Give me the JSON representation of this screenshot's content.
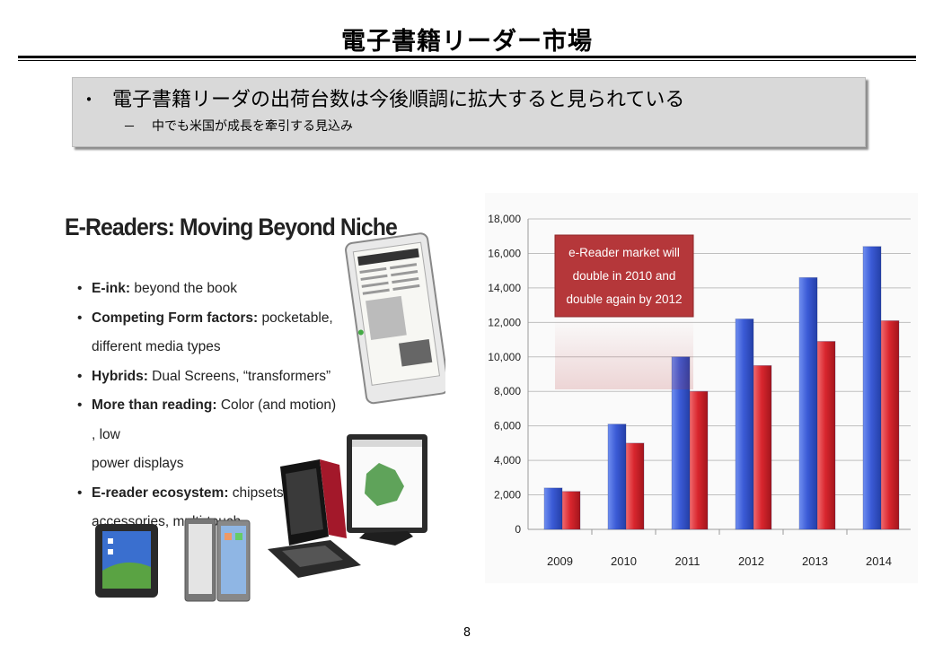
{
  "slide": {
    "title": "電子書籍リーダー市場",
    "page_number": "8"
  },
  "summary": {
    "bullet_marker": "・",
    "main_point": "電子書籍リーダの出荷台数は今後順調に拡大すると見られている",
    "sub_marker": "－",
    "sub_point": "中でも米国が成長を牽引する見込み"
  },
  "image_panel": {
    "heading": "E-Readers: Moving Beyond Niche",
    "features": [
      {
        "bold": "E-ink:",
        "text": " beyond the book",
        "cont": ""
      },
      {
        "bold": "Competing Form factors:",
        "text": " pocketable,",
        "cont": "different media types"
      },
      {
        "bold": "Hybrids:",
        "text": " Dual Screens, “transformers”",
        "cont": ""
      },
      {
        "bold": "More than reading:",
        "text": " Color (and motion) , low",
        "cont": "power displays"
      },
      {
        "bold": "E-reader ecosystem:",
        "text": " chipsets,",
        "cont": "accessories, multi-touch"
      }
    ]
  },
  "chart_data": {
    "type": "bar",
    "categories": [
      "2009",
      "2010",
      "2011",
      "2012",
      "2013",
      "2014"
    ],
    "series": [
      {
        "values": [
          2400,
          6100,
          10000,
          12200,
          14600,
          16400
        ],
        "color": "#3b5bd6"
      },
      {
        "values": [
          2200,
          5000,
          8000,
          9500,
          10900,
          12100
        ],
        "color": "#d9262e"
      }
    ],
    "ylim": [
      0,
      18000
    ],
    "yticks": [
      "0",
      "2,000",
      "4,000",
      "6,000",
      "8,000",
      "10,000",
      "12,000",
      "14,000",
      "16,000",
      "18,000"
    ],
    "grid": true,
    "annotation": {
      "lines": [
        "e-Reader market will",
        "double in 2010 and",
        "double again by 2012"
      ],
      "color": "#b5373a"
    }
  }
}
